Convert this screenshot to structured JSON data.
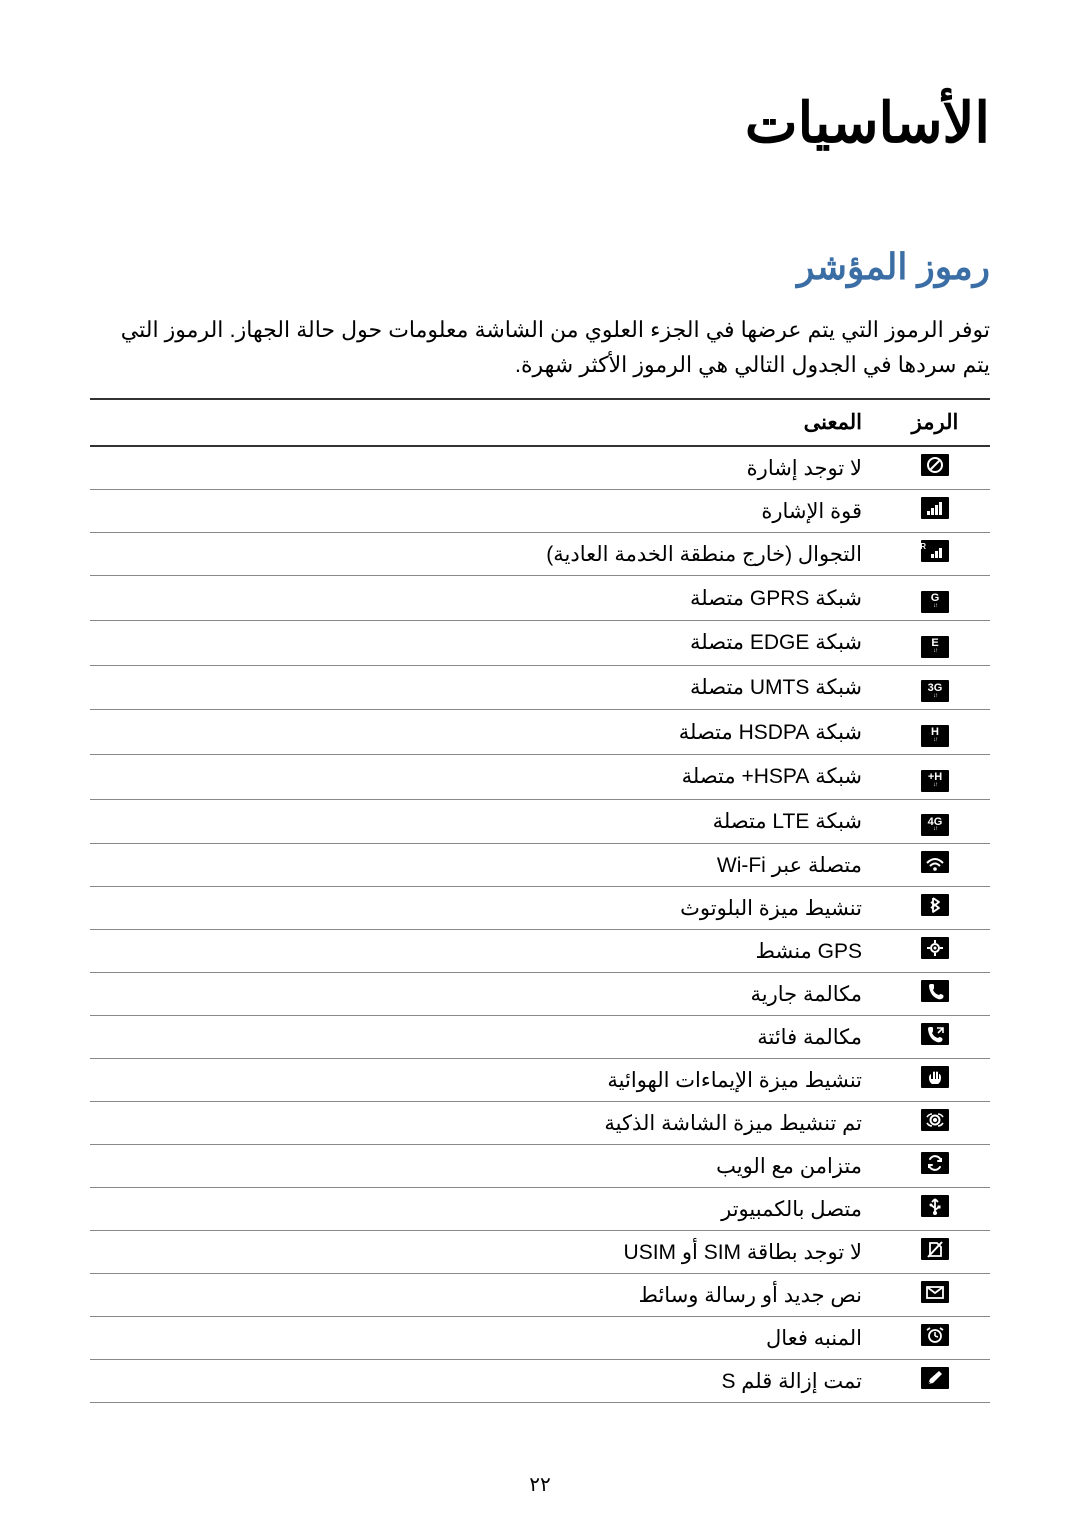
{
  "main_title": "الأساسيات",
  "section_title": "رموز المؤشر",
  "intro": "توفر الرموز التي يتم عرضها في الجزء العلوي من الشاشة معلومات حول حالة الجهاز. الرموز التي يتم سردها في الجدول التالي هي الرموز الأكثر شهرة.",
  "table": {
    "header_icon": "الرمز",
    "header_meaning": "المعنى",
    "rows": [
      {
        "icon_type": "no-signal",
        "meaning": "لا توجد إشارة"
      },
      {
        "icon_type": "signal",
        "meaning": "قوة الإشارة"
      },
      {
        "icon_type": "roaming",
        "meaning": "التجوال (خارج منطقة الخدمة العادية)"
      },
      {
        "icon_type": "text",
        "icon_text": "G",
        "meaning": "شبكة GPRS متصلة"
      },
      {
        "icon_type": "text",
        "icon_text": "E",
        "meaning": "شبكة EDGE متصلة"
      },
      {
        "icon_type": "text",
        "icon_text": "3G",
        "meaning": "شبكة UMTS متصلة"
      },
      {
        "icon_type": "text",
        "icon_text": "H",
        "meaning": "شبكة HSDPA متصلة"
      },
      {
        "icon_type": "text",
        "icon_text": "H+",
        "meaning": "شبكة HSPA+ متصلة"
      },
      {
        "icon_type": "text",
        "icon_text": "4G",
        "meaning": "شبكة LTE متصلة"
      },
      {
        "icon_type": "wifi",
        "meaning": "متصلة عبر Wi-Fi"
      },
      {
        "icon_type": "bluetooth",
        "meaning": "تنشيط ميزة البلوتوث"
      },
      {
        "icon_type": "gps",
        "meaning": "GPS منشط"
      },
      {
        "icon_type": "call",
        "meaning": "مكالمة جارية"
      },
      {
        "icon_type": "missed-call",
        "meaning": "مكالمة فائتة"
      },
      {
        "icon_type": "air-gesture",
        "meaning": "تنشيط ميزة الإيماءات الهوائية"
      },
      {
        "icon_type": "smart-screen",
        "meaning": "تم تنشيط ميزة الشاشة الذكية"
      },
      {
        "icon_type": "sync",
        "meaning": "متزامن مع الويب"
      },
      {
        "icon_type": "usb",
        "meaning": "متصل بالكمبيوتر"
      },
      {
        "icon_type": "no-sim",
        "meaning": "لا توجد بطاقة SIM أو USIM"
      },
      {
        "icon_type": "message",
        "meaning": "نص جديد أو رسالة وسائط"
      },
      {
        "icon_type": "alarm",
        "meaning": "المنبه فعال"
      },
      {
        "icon_type": "pen",
        "meaning": "تمت إزالة قلم S"
      }
    ]
  },
  "page_number": "٢٢",
  "colors": {
    "section_title": "#3a6ea5",
    "text": "#000000",
    "bg": "#ffffff",
    "border_dark": "#333333",
    "border_light": "#888888",
    "icon_bg": "#000000",
    "icon_fg": "#ffffff"
  }
}
